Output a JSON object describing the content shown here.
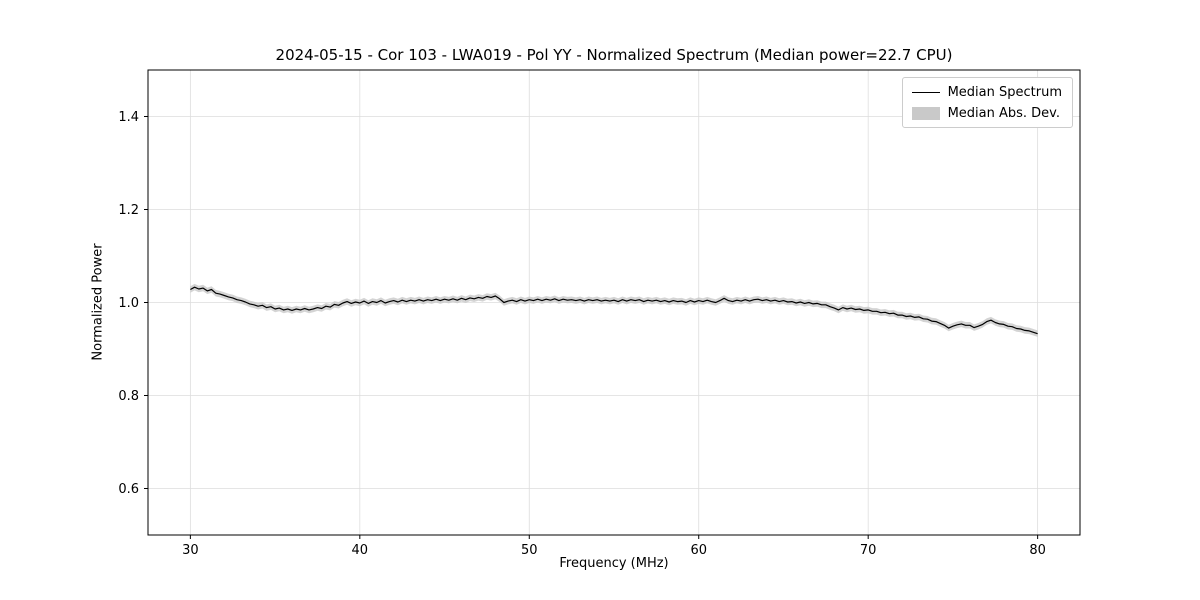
{
  "chart_data": {
    "type": "line",
    "title": "2024-05-15 - Cor 103 - LWA019 - Pol YY - Normalized Spectrum (Median power=22.7 CPU)",
    "xlabel": "Frequency (MHz)",
    "ylabel": "Normalized Power",
    "xlim": [
      27.5,
      82.5
    ],
    "ylim": [
      0.5,
      1.5
    ],
    "xticks": [
      30,
      40,
      50,
      60,
      70,
      80
    ],
    "yticks": [
      0.6,
      0.8,
      1.0,
      1.2,
      1.4
    ],
    "grid": true,
    "legend_position": "upper right",
    "x": {
      "start": 30,
      "step": 0.25,
      "count": 201
    },
    "series": [
      {
        "name": "Median Spectrum",
        "type": "line",
        "color": "#000000",
        "y": [
          1.028,
          1.033,
          1.029,
          1.031,
          1.025,
          1.028,
          1.02,
          1.018,
          1.015,
          1.012,
          1.01,
          1.006,
          1.004,
          1.001,
          0.997,
          0.995,
          0.992,
          0.994,
          0.989,
          0.991,
          0.986,
          0.988,
          0.984,
          0.986,
          0.983,
          0.986,
          0.984,
          0.987,
          0.984,
          0.986,
          0.989,
          0.987,
          0.992,
          0.99,
          0.996,
          0.994,
          0.999,
          1.002,
          0.998,
          1.001,
          0.999,
          1.003,
          0.998,
          1.002,
          1.0,
          1.004,
          0.999,
          1.002,
          1.004,
          1.001,
          1.005,
          1.002,
          1.005,
          1.003,
          1.006,
          1.003,
          1.006,
          1.004,
          1.007,
          1.004,
          1.007,
          1.005,
          1.008,
          1.005,
          1.009,
          1.006,
          1.01,
          1.008,
          1.011,
          1.009,
          1.013,
          1.011,
          1.014,
          1.008,
          1.0,
          1.003,
          1.005,
          1.002,
          1.006,
          1.003,
          1.006,
          1.004,
          1.007,
          1.004,
          1.007,
          1.005,
          1.008,
          1.004,
          1.007,
          1.005,
          1.006,
          1.004,
          1.006,
          1.003,
          1.006,
          1.004,
          1.006,
          1.003,
          1.005,
          1.003,
          1.005,
          1.002,
          1.006,
          1.003,
          1.006,
          1.004,
          1.006,
          1.002,
          1.005,
          1.003,
          1.005,
          1.002,
          1.004,
          1.001,
          1.004,
          1.002,
          1.003,
          1.0,
          1.004,
          1.001,
          1.004,
          1.002,
          1.005,
          1.002,
          1.0,
          1.004,
          1.009,
          1.004,
          1.002,
          1.005,
          1.003,
          1.006,
          1.003,
          1.006,
          1.007,
          1.004,
          1.006,
          1.003,
          1.005,
          1.002,
          1.004,
          1.001,
          1.002,
          0.999,
          1.001,
          0.998,
          1.0,
          0.997,
          0.998,
          0.995,
          0.995,
          0.991,
          0.988,
          0.984,
          0.989,
          0.986,
          0.988,
          0.985,
          0.986,
          0.983,
          0.984,
          0.981,
          0.981,
          0.978,
          0.979,
          0.976,
          0.977,
          0.973,
          0.973,
          0.97,
          0.971,
          0.968,
          0.969,
          0.965,
          0.964,
          0.96,
          0.959,
          0.955,
          0.951,
          0.945,
          0.949,
          0.952,
          0.954,
          0.951,
          0.951,
          0.946,
          0.949,
          0.953,
          0.959,
          0.962,
          0.957,
          0.954,
          0.953,
          0.949,
          0.948,
          0.944,
          0.943,
          0.94,
          0.939,
          0.936,
          0.933
        ]
      },
      {
        "name": "Median Abs. Dev.",
        "type": "band",
        "color": "#c9c9c9",
        "half_width": 0.007
      }
    ]
  },
  "style": {
    "line_color": "#000000",
    "band_color": "#c9c9c9",
    "grid_color": "#dddddd",
    "frame_color": "#000000",
    "background": "#ffffff"
  }
}
